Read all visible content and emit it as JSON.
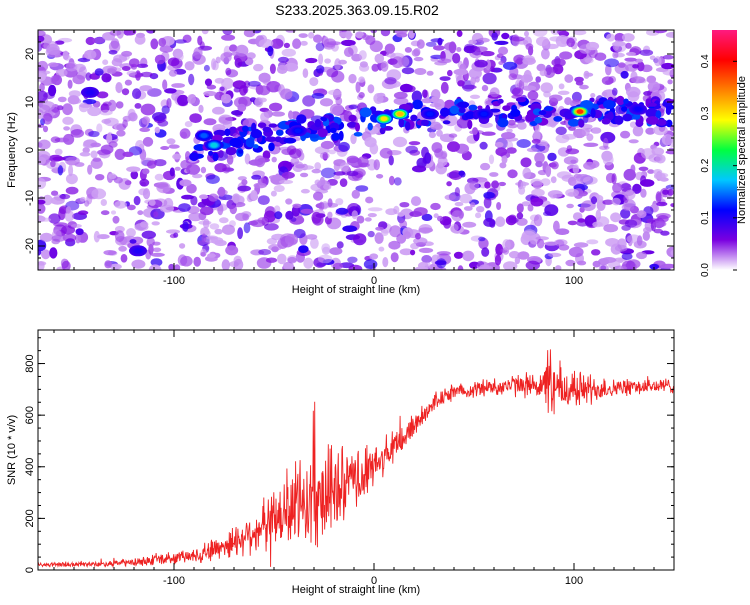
{
  "title": "S233.2025.363.09.15.R02",
  "chart_data": [
    {
      "type": "heatmap",
      "name": "spectrogram",
      "xlabel": "Height of straight line (km)",
      "ylabel": "Frequency (Hz)",
      "xlim": [
        -168,
        150
      ],
      "ylim": [
        -25,
        25
      ],
      "xticks": [
        -100,
        0,
        100
      ],
      "yticks": [
        -20,
        -10,
        0,
        10,
        20
      ],
      "colorbar": {
        "label": "Normalized spectral amplitude",
        "range": [
          0.0,
          0.46
        ],
        "ticks": [
          "0.0",
          "0.1",
          "0.2",
          "0.3",
          "0.4"
        ],
        "colors": [
          "#ffffff",
          "#7a00e0",
          "#0000ff",
          "#00c8ff",
          "#00ff40",
          "#ffff00",
          "#ff8000",
          "#ff0000",
          "#ff1a80"
        ]
      },
      "ridge": {
        "description_points_km_hz": [
          [
            -80,
            1
          ],
          [
            -40,
            4
          ],
          [
            0,
            6
          ],
          [
            20,
            7
          ],
          [
            60,
            8
          ],
          [
            100,
            8
          ],
          [
            140,
            8
          ]
        ]
      },
      "hotspots": [
        {
          "x": 5,
          "y": 6.5,
          "amp": 0.3
        },
        {
          "x": 13,
          "y": 7.5,
          "amp": 0.32
        },
        {
          "x": 103,
          "y": 8,
          "amp": 0.38
        },
        {
          "x": -80,
          "y": 1,
          "amp": 0.18
        },
        {
          "x": -38,
          "y": 4,
          "amp": 0.12
        },
        {
          "x": -85,
          "y": 3,
          "amp": 0.14
        },
        {
          "x": 28,
          "y": 7.5,
          "amp": 0.12
        },
        {
          "x": 55,
          "y": 7.5,
          "amp": 0.12
        },
        {
          "x": 132,
          "y": 8.5,
          "amp": 0.11
        },
        {
          "x": -142,
          "y": 12,
          "amp": 0.1
        },
        {
          "x": -118,
          "y": -21,
          "amp": 0.1
        }
      ]
    },
    {
      "type": "line",
      "name": "snr",
      "xlabel": "Height of straight line (km)",
      "ylabel": "SNR (10 * v/v)",
      "xlim": [
        -168,
        150
      ],
      "ylim": [
        0,
        930
      ],
      "xticks": [
        -100,
        0,
        100
      ],
      "yticks": [
        0,
        200,
        400,
        600,
        800
      ],
      "line_color": "#ee2222",
      "envelope": {
        "x": [
          -168,
          -140,
          -120,
          -100,
          -90,
          -80,
          -70,
          -60,
          -50,
          -40,
          -30,
          -20,
          -10,
          0,
          10,
          20,
          30,
          40,
          60,
          80,
          90,
          100,
          120,
          150
        ],
        "mean": [
          20,
          22,
          30,
          45,
          55,
          80,
          110,
          150,
          190,
          240,
          280,
          300,
          340,
          400,
          470,
          560,
          650,
          690,
          710,
          720,
          700,
          700,
          705,
          715
        ],
        "noise": [
          10,
          12,
          18,
          28,
          35,
          55,
          75,
          95,
          140,
          200,
          230,
          200,
          150,
          90,
          80,
          60,
          40,
          35,
          40,
          60,
          140,
          90,
          40,
          35
        ]
      }
    }
  ]
}
